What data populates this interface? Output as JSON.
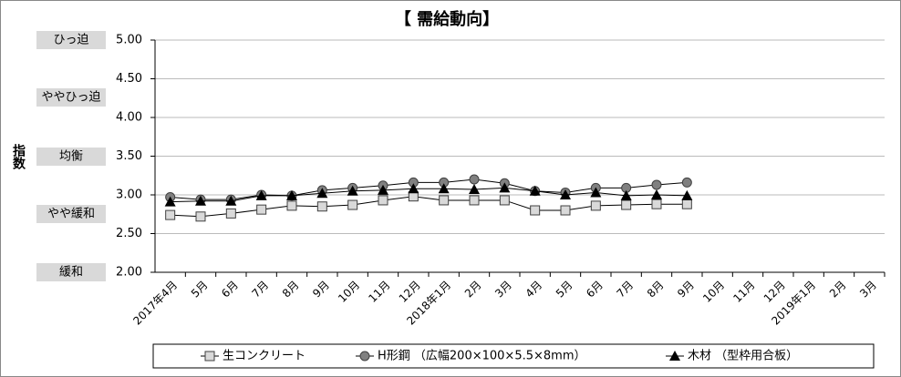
{
  "chart_data": {
    "type": "line",
    "title": "【 需給動向】",
    "y_label": "指数",
    "level_labels": [
      "ひっ迫",
      "ややひっ迫",
      "均衡",
      "やや緩和",
      "緩和"
    ],
    "categories": [
      "2017年4月",
      "5月",
      "6月",
      "7月",
      "8月",
      "9月",
      "10月",
      "11月",
      "12月",
      "2018年1月",
      "2月",
      "3月",
      "4月",
      "5月",
      "6月",
      "7月",
      "8月",
      "9月",
      "10月",
      "11月",
      "12月",
      "2019年1月",
      "2月",
      "3月"
    ],
    "series": [
      {
        "name": "生コンクリート",
        "color": "#d9d9d9",
        "marker": "square",
        "values": [
          2.74,
          2.72,
          2.76,
          2.81,
          2.86,
          2.85,
          2.87,
          2.93,
          2.98,
          2.93,
          2.93,
          2.93,
          2.8,
          2.8,
          2.86,
          2.87,
          2.88,
          2.88,
          null,
          null,
          null,
          null,
          null,
          null
        ]
      },
      {
        "name": "H形鋼 （広幅200×100×5.5×8mm）",
        "color": "#808080",
        "marker": "circle",
        "values": [
          2.97,
          2.94,
          2.94,
          3.0,
          2.99,
          3.06,
          3.09,
          3.12,
          3.16,
          3.16,
          3.2,
          3.15,
          3.05,
          3.03,
          3.09,
          3.09,
          3.13,
          3.16,
          null,
          null,
          null,
          null,
          null,
          null
        ]
      },
      {
        "name": "木材 （型枠用合板）",
        "color": "#000000",
        "marker": "triangle",
        "values": [
          2.91,
          2.92,
          2.92,
          2.99,
          2.99,
          3.02,
          3.05,
          3.06,
          3.08,
          3.08,
          3.07,
          3.09,
          3.05,
          3.0,
          3.03,
          2.99,
          3.0,
          2.99,
          null,
          null,
          null,
          null,
          null,
          null
        ]
      }
    ],
    "ylim": [
      2,
      5
    ],
    "yticks": [
      {
        "value": 2,
        "label": "2.00"
      },
      {
        "value": 2.5,
        "label": "2.50"
      },
      {
        "value": 3,
        "label": "3.00"
      },
      {
        "value": 3.5,
        "label": "3.50"
      },
      {
        "value": 4,
        "label": "4.00"
      },
      {
        "value": 4.5,
        "label": "4.50"
      },
      {
        "value": 5,
        "label": "5.00"
      }
    ],
    "grid": true
  }
}
